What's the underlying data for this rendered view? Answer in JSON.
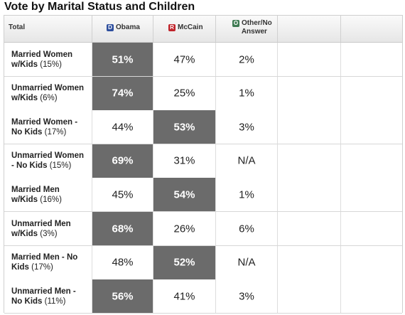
{
  "title": "Vote by Marital Status and Children",
  "header": {
    "total": "Total",
    "obama": {
      "badge": "D",
      "label": "Obama",
      "color": "#2e4f9e"
    },
    "mccain": {
      "badge": "R",
      "label": "McCain",
      "color": "#c0242b"
    },
    "other": {
      "badge": "O",
      "label_line1": "Other/No",
      "label_line2": "Answer",
      "color": "#3e7a52"
    }
  },
  "rows": [
    {
      "label_bold_1": "Married Women",
      "label_bold_2": "w/Kids",
      "label_pct": "(15%)",
      "obama": "51%",
      "mccain": "47%",
      "other": "2%",
      "winner": "obama"
    },
    {
      "label_bold_1": "Unmarried Women",
      "label_bold_2": "w/Kids",
      "label_pct": "(6%)",
      "obama": "74%",
      "mccain": "25%",
      "other": "1%",
      "winner": "obama"
    },
    {
      "label_bold_1": "Married Women -",
      "label_bold_2": "No Kids",
      "label_pct": "(17%)",
      "obama": "44%",
      "mccain": "53%",
      "other": "3%",
      "winner": "mccain"
    },
    {
      "label_bold_1": "Unmarried Women",
      "label_bold_2": "- No Kids",
      "label_pct": "(15%)",
      "obama": "69%",
      "mccain": "31%",
      "other": "N/A",
      "winner": "obama"
    },
    {
      "label_bold_1": "Married Men",
      "label_bold_2": "w/Kids",
      "label_pct": "(16%)",
      "obama": "45%",
      "mccain": "54%",
      "other": "1%",
      "winner": "mccain"
    },
    {
      "label_bold_1": "Unmarried Men",
      "label_bold_2": "w/Kids",
      "label_pct": "(3%)",
      "obama": "68%",
      "mccain": "26%",
      "other": "6%",
      "winner": "obama"
    },
    {
      "label_bold_1": "Married Men - No",
      "label_bold_2": "Kids",
      "label_pct": "(17%)",
      "obama": "48%",
      "mccain": "52%",
      "other": "N/A",
      "winner": "mccain"
    },
    {
      "label_bold_1": "Unmarried Men -",
      "label_bold_2": "No Kids",
      "label_pct": "(11%)",
      "obama": "56%",
      "mccain": "41%",
      "other": "3%",
      "winner": "obama"
    }
  ]
}
